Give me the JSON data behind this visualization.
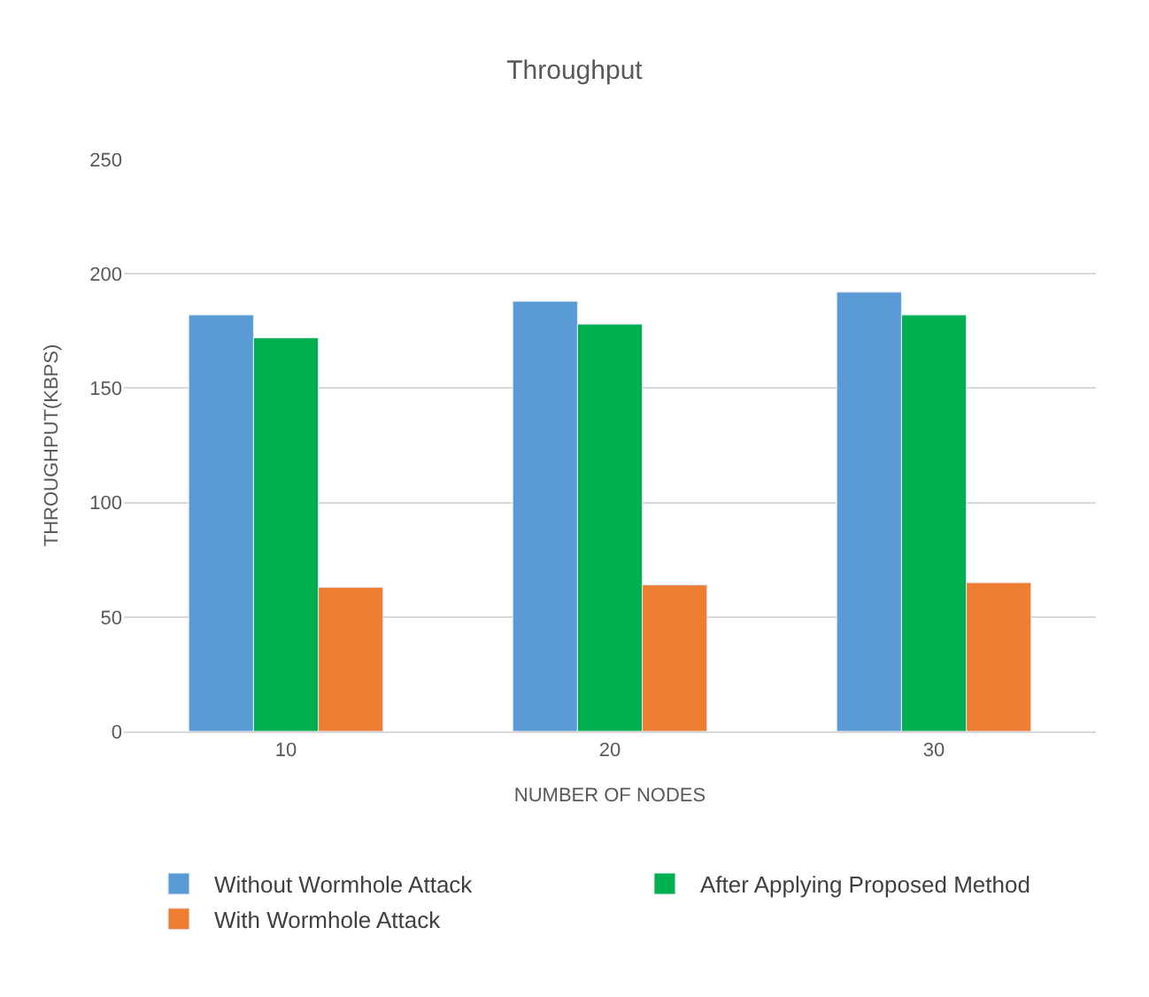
{
  "chart_data": {
    "type": "bar",
    "title": "Throughput",
    "xlabel": "NUMBER OF NODES",
    "ylabel": "THROUGHPUT(KBPS)",
    "categories": [
      "10",
      "20",
      "30"
    ],
    "series": [
      {
        "name": "Without Wormhole Attack",
        "color": "#5b9bd5",
        "values": [
          182,
          188,
          192
        ]
      },
      {
        "name": "After Applying Proposed Method",
        "color": "#00b050",
        "values": [
          172,
          178,
          182
        ]
      },
      {
        "name": "With Wormhole Attack",
        "color": "#ed7d31",
        "values": [
          63,
          64,
          65
        ]
      }
    ],
    "ylim": [
      0,
      250
    ],
    "yticks": [
      0,
      50,
      100,
      150,
      200,
      250
    ],
    "grid": "y",
    "legend": "bottom"
  }
}
